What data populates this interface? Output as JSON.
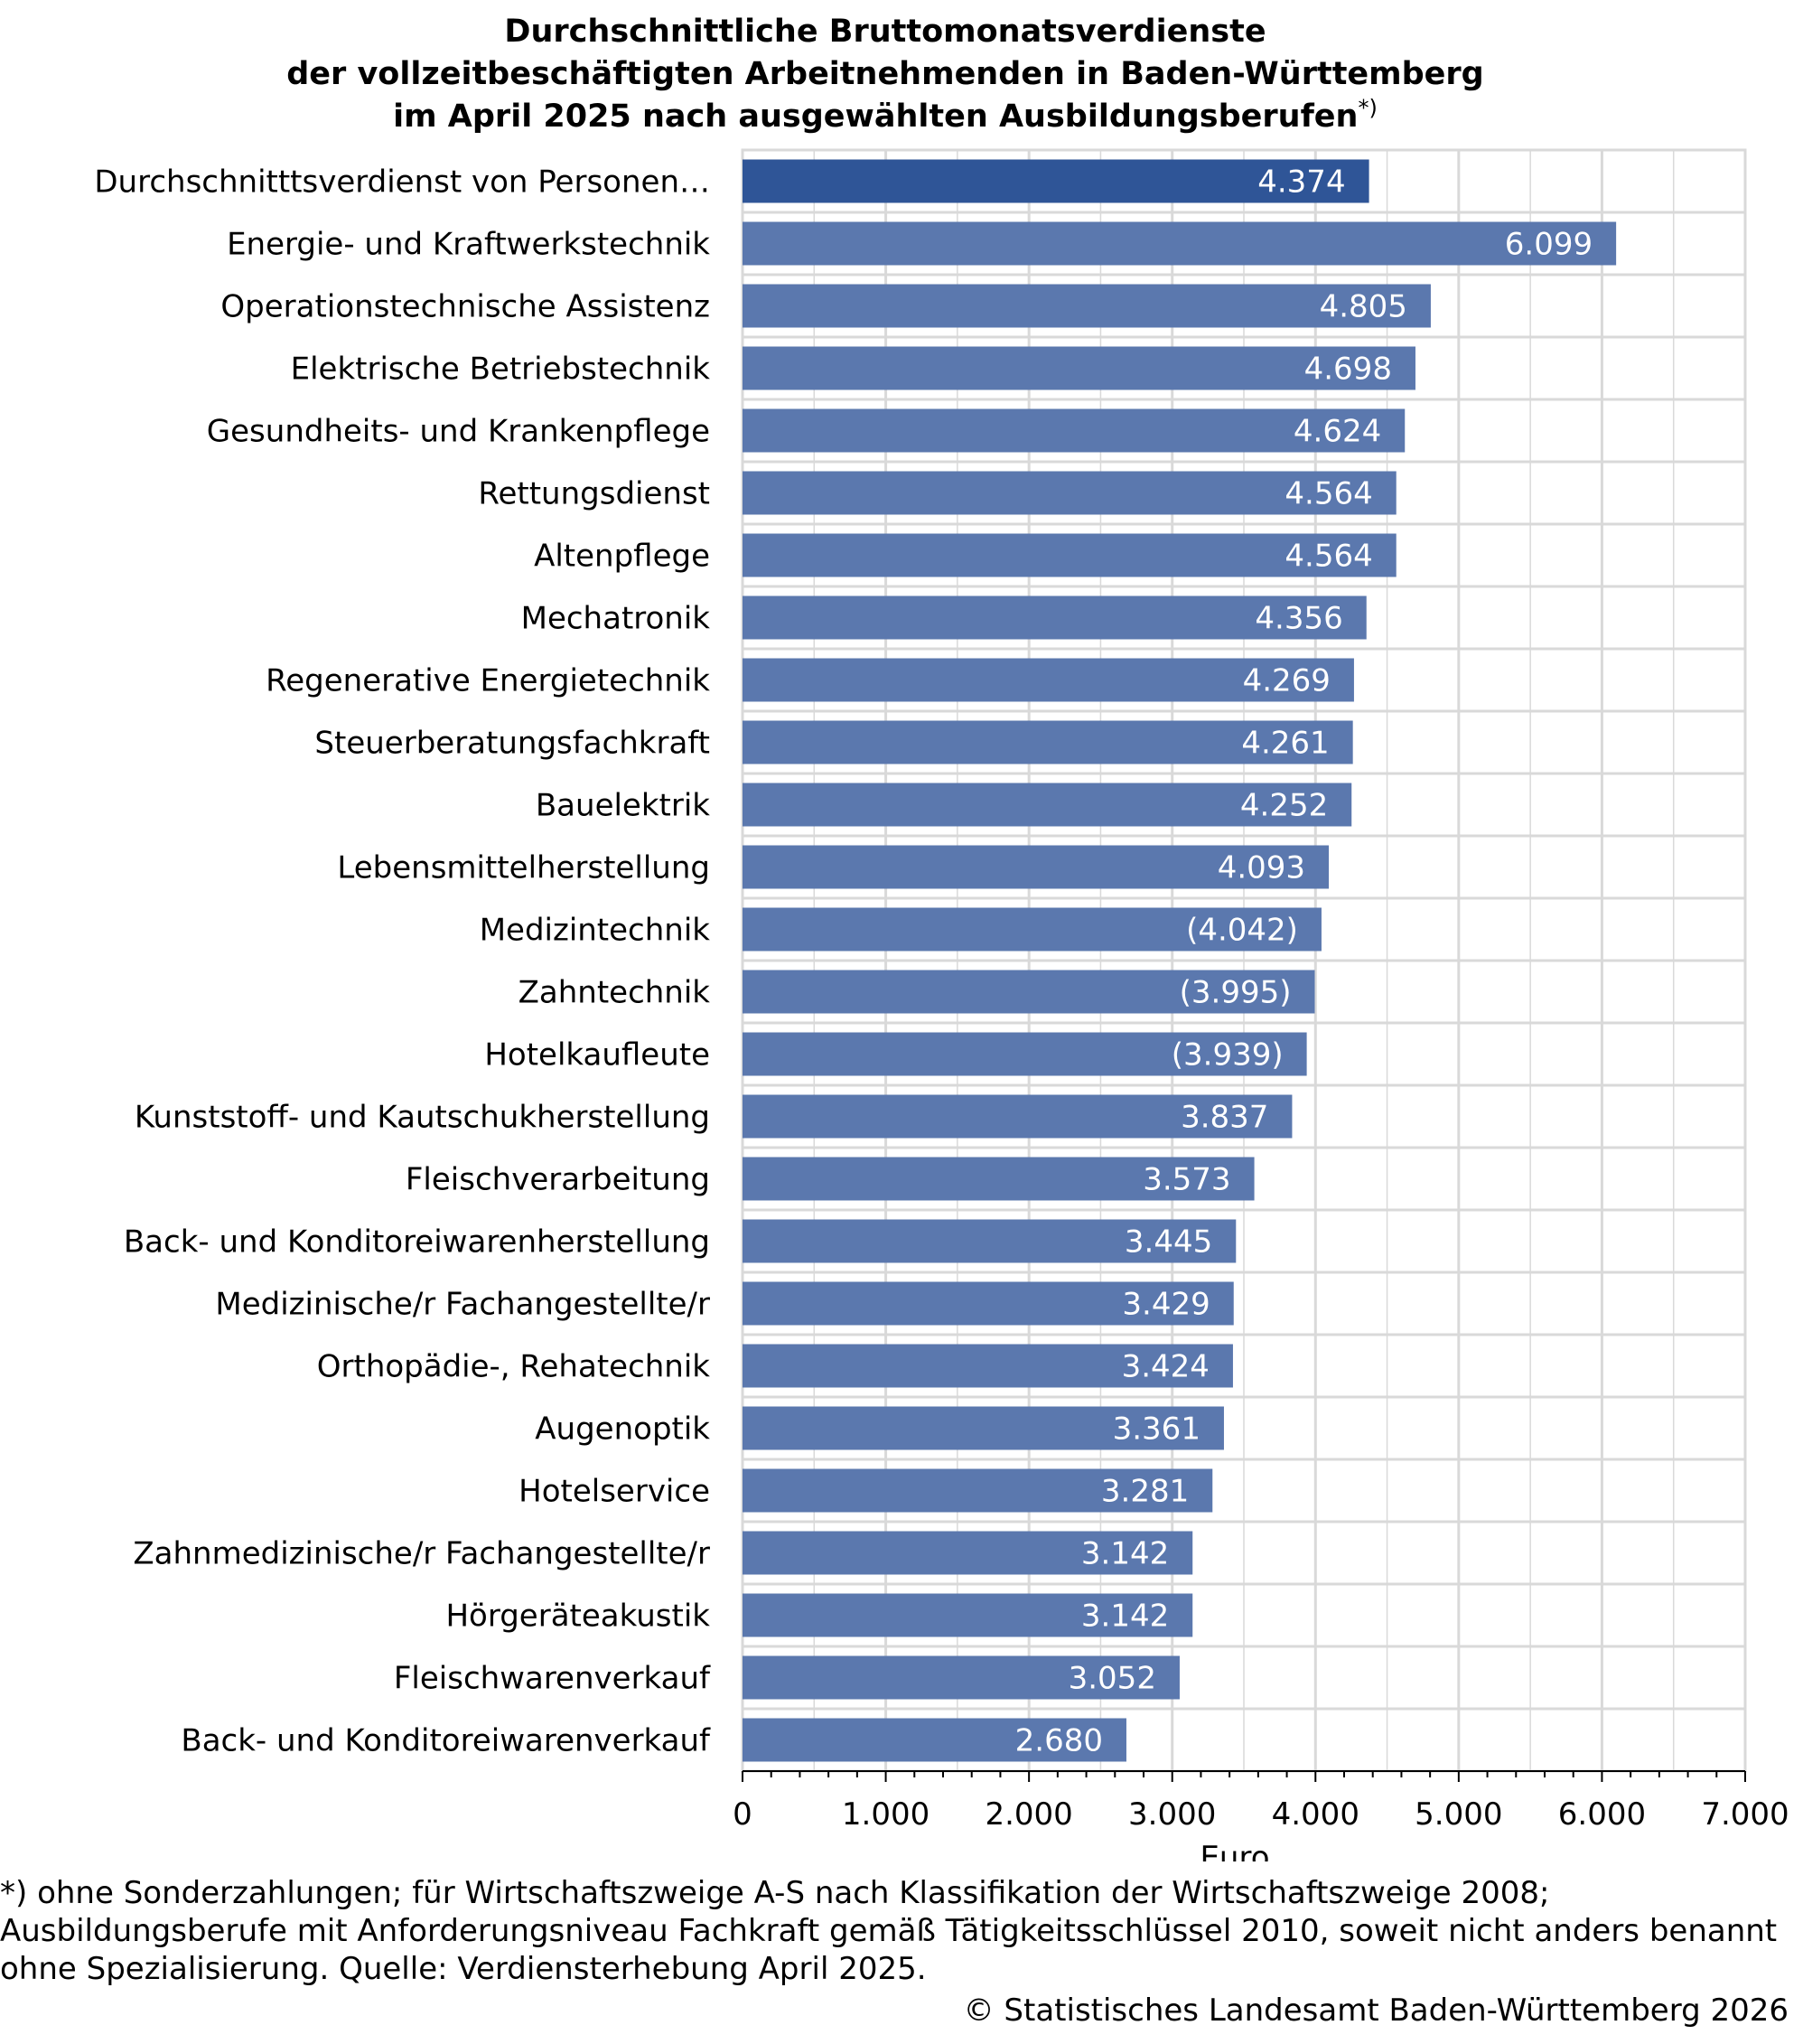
{
  "chart_data": {
    "type": "bar",
    "orientation": "horizontal",
    "title_lines": [
      "Durchschnittliche Bruttomonatsverdienste",
      "der vollzeitbeschäftigten Arbeitnehmenden in Baden-Württemberg",
      "im April 2025 nach ausgewählten Ausbildungsberufen"
    ],
    "title_suffix": "*)",
    "categories": [
      "Durchschnitttsverdienst von Personen…",
      "Energie- und Kraftwerkstechnik",
      "Operationstechnische Assistenz",
      "Elektrische Betriebstechnik",
      "Gesundheits- und Krankenpflege",
      "Rettungsdienst",
      "Altenpflege",
      "Mechatronik",
      "Regenerative Energietechnik",
      "Steuerberatungsfachkraft",
      "Bauelektrik",
      "Lebensmittelherstellung",
      "Medizintechnik",
      "Zahntechnik",
      "Hotelkaufleute",
      "Kunststoff- und Kautschukherstellung",
      "Fleischverarbeitung",
      "Back- und Konditoreiwarenherstellung",
      "Medizinische/r Fachangestellte/r",
      "Orthopädie-, Rehatechnik",
      "Augenoptik ",
      "Hotelservice",
      "Zahnmedizinische/r Fachangestellte/r",
      "Hörgeräteakustik",
      "Fleischwarenverkauf",
      "Back- und Konditoreiwarenverkauf"
    ],
    "values": [
      4374,
      6099,
      4805,
      4698,
      4624,
      4564,
      4564,
      4356,
      4269,
      4261,
      4252,
      4093,
      4042,
      3995,
      3939,
      3837,
      3573,
      3445,
      3429,
      3424,
      3361,
      3281,
      3142,
      3142,
      3052,
      2680
    ],
    "value_labels": [
      "4.374",
      "6.099",
      "4.805",
      "4.698",
      "4.624",
      "4.564",
      "4.564",
      "4.356",
      "4.269",
      "4.261",
      "4.252",
      "4.093",
      "(4.042)",
      "(3.995)",
      "(3.939)",
      "3.837",
      "3.573",
      "3.445",
      "3.429",
      "3.424",
      "3.361",
      "3.281",
      "3.142",
      "3.142",
      "3.052",
      "2.680"
    ],
    "highlight_index": 0,
    "xlim": [
      0,
      7000
    ],
    "x_ticks": [
      0,
      1000,
      2000,
      3000,
      4000,
      5000,
      6000,
      7000
    ],
    "x_tick_labels": [
      "0",
      "1.000",
      "2.000",
      "3.000",
      "4.000",
      "5.000",
      "6.000",
      "7.000"
    ],
    "xlabel": "Euro",
    "grid": true,
    "colors": {
      "highlight": "#2f5597",
      "bar": "#5b78ae",
      "grid": "#d9d9d9",
      "axis": "#000000"
    }
  },
  "footnote": "*) ohne Sonderzahlungen; für Wirtschaftszweige A-S nach Klassifikation der Wirtschaftszweige 2008; Ausbildungsberufe mit Anforderungsniveau Fachkraft gemäß Tätigkeitsschlüssel 2010, soweit nicht anders benannt ohne Spezialisierung. Quelle: Verdiensterhebung April 2025.",
  "copyright": "© Statistisches Landesamt Baden-Württemberg 2026"
}
